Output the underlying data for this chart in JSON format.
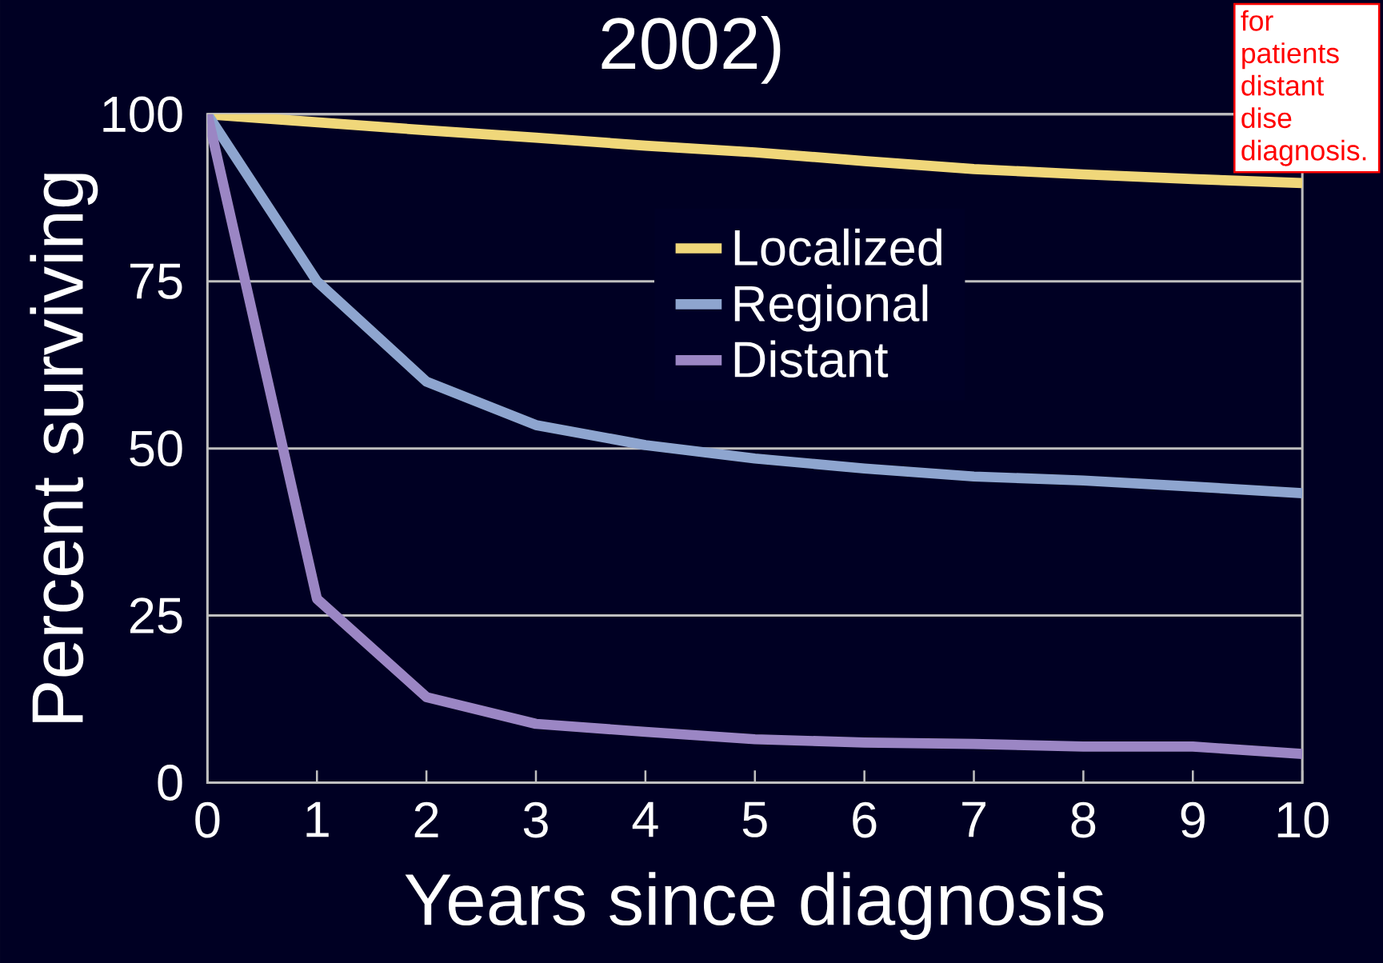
{
  "chart_data": {
    "type": "line",
    "title": "2002)",
    "xlabel": "Years since diagnosis",
    "ylabel": "Percent surviving",
    "annotations": [
      "for patients distant dise diagnosis."
    ],
    "x": [
      0,
      1,
      2,
      3,
      4,
      5,
      6,
      7,
      8,
      9,
      10
    ],
    "series": [
      {
        "name": "Localized",
        "color": "#f0d77a",
        "values": [
          100,
          98.8,
          97.6,
          96.5,
          95.3,
          94.3,
          93,
          91.8,
          91,
          90.3,
          89.7
        ]
      },
      {
        "name": "Regional",
        "color": "#8ea5cf",
        "values": [
          100,
          75,
          60,
          53.5,
          50.5,
          48.5,
          47,
          45.8,
          45.2,
          44.3,
          43.3
        ]
      },
      {
        "name": "Distant",
        "color": "#9b86c4",
        "values": [
          100,
          27.5,
          12.8,
          8.8,
          7.6,
          6.5,
          6,
          5.8,
          5.4,
          5.4,
          4.3
        ]
      }
    ],
    "xlim": [
      0,
      10
    ],
    "xticks": [
      0,
      1,
      2,
      3,
      4,
      5,
      6,
      7,
      8,
      9,
      10
    ],
    "ylim": [
      0,
      100
    ],
    "yticks": [
      0,
      25,
      50,
      75,
      100
    ],
    "grid": "y",
    "legend": "top",
    "marker": "none",
    "line_style": "solid"
  }
}
